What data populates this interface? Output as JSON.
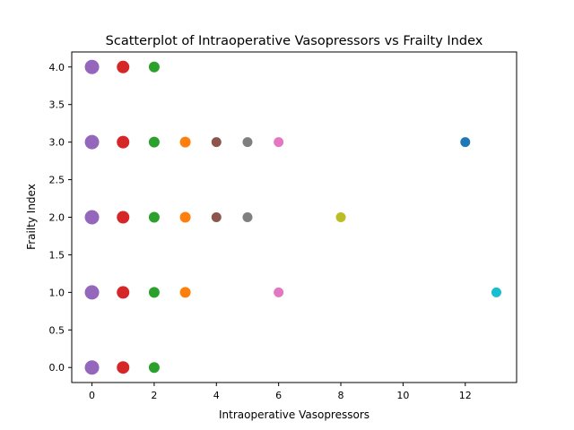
{
  "chart_data": {
    "type": "scatter",
    "title": "Scatterplot of Intraoperative Vasopressors vs Frailty Index",
    "xlabel": "Intraoperative Vasopressors",
    "ylabel": "Frailty Index",
    "xlim": [
      -0.65,
      13.65
    ],
    "ylim": [
      -0.2,
      4.2
    ],
    "xticks": [
      0,
      2,
      4,
      6,
      8,
      10,
      12
    ],
    "yticks": [
      0.0,
      0.5,
      1.0,
      1.5,
      2.0,
      2.5,
      3.0,
      3.5,
      4.0
    ],
    "xtick_labels": [
      "0",
      "2",
      "4",
      "6",
      "8",
      "10",
      "12"
    ],
    "ytick_labels": [
      "0.0",
      "0.5",
      "1.0",
      "1.5",
      "2.0",
      "2.5",
      "3.0",
      "3.5",
      "4.0"
    ],
    "grid": false,
    "legend": "none",
    "points": [
      {
        "x": 0,
        "y": 0,
        "color": "#9467bd",
        "size": "large"
      },
      {
        "x": 0,
        "y": 1,
        "color": "#9467bd",
        "size": "large"
      },
      {
        "x": 0,
        "y": 2,
        "color": "#9467bd",
        "size": "large"
      },
      {
        "x": 0,
        "y": 3,
        "color": "#9467bd",
        "size": "large"
      },
      {
        "x": 0,
        "y": 4,
        "color": "#9467bd",
        "size": "large"
      },
      {
        "x": 1,
        "y": 0,
        "color": "#d62728",
        "size": "medium"
      },
      {
        "x": 1,
        "y": 1,
        "color": "#d62728",
        "size": "medium"
      },
      {
        "x": 1,
        "y": 2,
        "color": "#d62728",
        "size": "medium"
      },
      {
        "x": 1,
        "y": 3,
        "color": "#d62728",
        "size": "medium"
      },
      {
        "x": 1,
        "y": 4,
        "color": "#d62728",
        "size": "medium"
      },
      {
        "x": 2,
        "y": 0,
        "color": "#2ca02c",
        "size": "normal"
      },
      {
        "x": 2,
        "y": 1,
        "color": "#2ca02c",
        "size": "normal"
      },
      {
        "x": 2,
        "y": 2,
        "color": "#2ca02c",
        "size": "normal"
      },
      {
        "x": 2,
        "y": 3,
        "color": "#2ca02c",
        "size": "normal"
      },
      {
        "x": 2,
        "y": 4,
        "color": "#2ca02c",
        "size": "normal"
      },
      {
        "x": 3,
        "y": 1,
        "color": "#ff7f0e",
        "size": "normal"
      },
      {
        "x": 3,
        "y": 2,
        "color": "#ff7f0e",
        "size": "normal"
      },
      {
        "x": 3,
        "y": 3,
        "color": "#ff7f0e",
        "size": "normal"
      },
      {
        "x": 4,
        "y": 2,
        "color": "#8c564b",
        "size": "small"
      },
      {
        "x": 4,
        "y": 3,
        "color": "#8c564b",
        "size": "small"
      },
      {
        "x": 5,
        "y": 2,
        "color": "#7f7f7f",
        "size": "small"
      },
      {
        "x": 5,
        "y": 3,
        "color": "#7f7f7f",
        "size": "small"
      },
      {
        "x": 6,
        "y": 1,
        "color": "#e377c2",
        "size": "small"
      },
      {
        "x": 6,
        "y": 3,
        "color": "#e377c2",
        "size": "small"
      },
      {
        "x": 8,
        "y": 2,
        "color": "#bcbd22",
        "size": "small"
      },
      {
        "x": 12,
        "y": 3,
        "color": "#1f77b4",
        "size": "small"
      },
      {
        "x": 13,
        "y": 1,
        "color": "#17becf",
        "size": "small"
      }
    ]
  }
}
